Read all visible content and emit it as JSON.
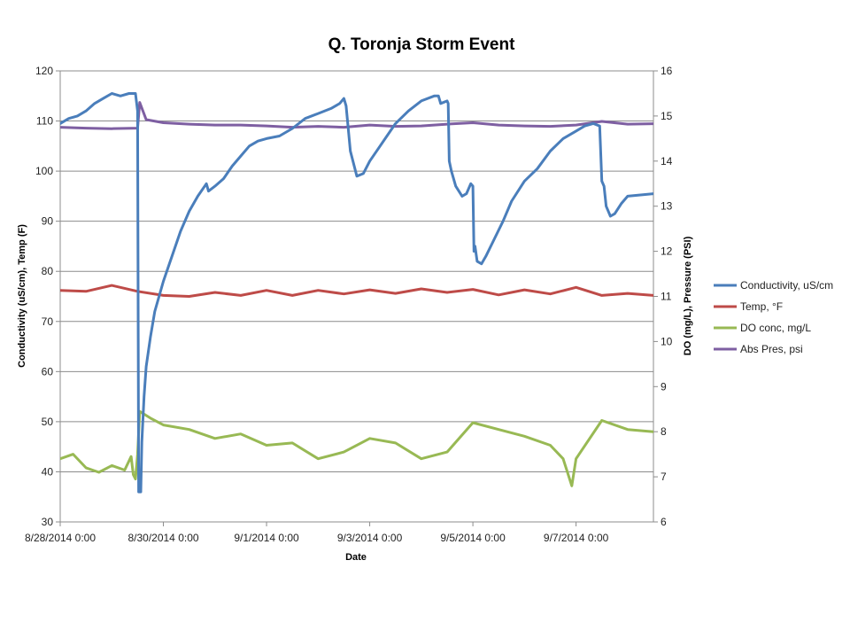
{
  "chart_data": {
    "type": "line",
    "title": "Q. Toronja Storm Event",
    "xlabel": "Date",
    "ylabel_left": "Conductivity  (uS/cm), Temp (F)",
    "ylabel_right": "DO (mg/L), Pressure (PSI)",
    "x_range": [
      "8/28/2014 0:00",
      "9/8/2014 12:00"
    ],
    "x_ticks": [
      "8/28/2014 0:00",
      "8/30/2014 0:00",
      "9/1/2014 0:00",
      "9/3/2014 0:00",
      "9/5/2014 0:00",
      "9/7/2014 0:00"
    ],
    "y_left_range": [
      30,
      120
    ],
    "y_left_ticks": [
      "30",
      "40",
      "50",
      "60",
      "70",
      "80",
      "90",
      "100",
      "110",
      "120"
    ],
    "y_right_range": [
      6,
      16
    ],
    "y_right_ticks": [
      "6",
      "7",
      "8",
      "9",
      "10",
      "11",
      "12",
      "13",
      "14",
      "15",
      "16"
    ],
    "grid": "horizontal",
    "legend_position": "right",
    "series": [
      {
        "name": "Conductivity, uS/cm",
        "axis": "left",
        "color": "#4a7ebb",
        "points": [
          [
            "8/28/2014 0:00",
            109.5
          ],
          [
            "8/28/2014 4:00",
            110.5
          ],
          [
            "8/28/2014 8:00",
            111
          ],
          [
            "8/28/2014 12:00",
            112
          ],
          [
            "8/28/2014 16:00",
            113.5
          ],
          [
            "8/28/2014 20:00",
            114.5
          ],
          [
            "8/29/2014 0:00",
            115.5
          ],
          [
            "8/29/2014 4:00",
            115
          ],
          [
            "8/29/2014 8:00",
            115.5
          ],
          [
            "8/29/2014 11:00",
            115.5
          ],
          [
            "8/29/2014 12:00",
            112
          ],
          [
            "8/29/2014 12:30",
            36
          ],
          [
            "8/29/2014 13:30",
            36
          ],
          [
            "8/29/2014 14:00",
            46
          ],
          [
            "8/29/2014 15:00",
            55
          ],
          [
            "8/29/2014 16:00",
            61
          ],
          [
            "8/29/2014 18:00",
            67
          ],
          [
            "8/29/2014 20:00",
            72
          ],
          [
            "8/30/2014 0:00",
            78
          ],
          [
            "8/30/2014 4:00",
            83
          ],
          [
            "8/30/2014 8:00",
            88
          ],
          [
            "8/30/2014 12:00",
            92
          ],
          [
            "8/30/2014 16:00",
            95
          ],
          [
            "8/30/2014 20:00",
            97.5
          ],
          [
            "8/30/2014 21:00",
            96
          ],
          [
            "8/31/2014 0:00",
            97
          ],
          [
            "8/31/2014 4:00",
            98.5
          ],
          [
            "8/31/2014 8:00",
            101
          ],
          [
            "8/31/2014 12:00",
            103
          ],
          [
            "8/31/2014 16:00",
            105
          ],
          [
            "8/31/2014 20:00",
            106
          ],
          [
            "9/1/2014 0:00",
            106.5
          ],
          [
            "9/1/2014 6:00",
            107
          ],
          [
            "9/1/2014 12:00",
            108.5
          ],
          [
            "9/1/2014 18:00",
            110.5
          ],
          [
            "9/2/2014 0:00",
            111.5
          ],
          [
            "9/2/2014 6:00",
            112.5
          ],
          [
            "9/2/2014 10:00",
            113.5
          ],
          [
            "9/2/2014 12:00",
            114.5
          ],
          [
            "9/2/2014 13:00",
            113
          ],
          [
            "9/2/2014 15:00",
            104
          ],
          [
            "9/2/2014 18:00",
            99
          ],
          [
            "9/2/2014 21:00",
            99.5
          ],
          [
            "9/3/2014 0:00",
            102
          ],
          [
            "9/3/2014 4:00",
            104.5
          ],
          [
            "9/3/2014 8:00",
            107
          ],
          [
            "9/3/2014 12:00",
            109.5
          ],
          [
            "9/3/2014 18:00",
            112
          ],
          [
            "9/4/2014 0:00",
            114
          ],
          [
            "9/4/2014 6:00",
            115
          ],
          [
            "9/4/2014 8:00",
            115
          ],
          [
            "9/4/2014 9:00",
            113.5
          ],
          [
            "9/4/2014 12:00",
            114
          ],
          [
            "9/4/2014 12:30",
            113.5
          ],
          [
            "9/4/2014 13:00",
            102
          ],
          [
            "9/4/2014 14:00",
            100
          ],
          [
            "9/4/2014 16:00",
            97
          ],
          [
            "9/4/2014 19:00",
            95
          ],
          [
            "9/4/2014 21:00",
            95.5
          ],
          [
            "9/4/2014 23:00",
            97.5
          ],
          [
            "9/5/2014 0:00",
            97
          ],
          [
            "9/5/2014 0:30",
            84
          ],
          [
            "9/5/2014 1:00",
            85
          ],
          [
            "9/5/2014 2:00",
            82
          ],
          [
            "9/5/2014 4:00",
            81.5
          ],
          [
            "9/5/2014 6:00",
            83
          ],
          [
            "9/5/2014 10:00",
            86.5
          ],
          [
            "9/5/2014 14:00",
            90
          ],
          [
            "9/5/2014 18:00",
            94
          ],
          [
            "9/6/2014 0:00",
            98
          ],
          [
            "9/6/2014 6:00",
            100.5
          ],
          [
            "9/6/2014 12:00",
            104
          ],
          [
            "9/6/2014 18:00",
            106.5
          ],
          [
            "9/7/2014 0:00",
            108
          ],
          [
            "9/7/2014 4:00",
            109
          ],
          [
            "9/7/2014 8:00",
            109.5
          ],
          [
            "9/7/2014 11:00",
            109
          ],
          [
            "9/7/2014 12:00",
            98
          ],
          [
            "9/7/2014 13:00",
            97
          ],
          [
            "9/7/2014 14:00",
            93
          ],
          [
            "9/7/2014 16:00",
            91
          ],
          [
            "9/7/2014 18:00",
            91.5
          ],
          [
            "9/7/2014 21:00",
            93.5
          ],
          [
            "9/8/2014 0:00",
            95
          ],
          [
            "9/8/2014 12:00",
            95.5
          ]
        ]
      },
      {
        "name": "Temp, °F",
        "axis": "left",
        "color": "#be4b48",
        "points": [
          [
            "8/28/2014 0:00",
            76.2
          ],
          [
            "8/28/2014 12:00",
            76
          ],
          [
            "8/29/2014 0:00",
            77.2
          ],
          [
            "8/29/2014 12:00",
            76
          ],
          [
            "8/30/2014 0:00",
            75.2
          ],
          [
            "8/30/2014 12:00",
            75
          ],
          [
            "8/31/2014 0:00",
            75.8
          ],
          [
            "8/31/2014 12:00",
            75.2
          ],
          [
            "9/1/2014 0:00",
            76.2
          ],
          [
            "9/1/2014 12:00",
            75.2
          ],
          [
            "9/2/2014 0:00",
            76.2
          ],
          [
            "9/2/2014 12:00",
            75.5
          ],
          [
            "9/3/2014 0:00",
            76.3
          ],
          [
            "9/3/2014 12:00",
            75.6
          ],
          [
            "9/4/2014 0:00",
            76.5
          ],
          [
            "9/4/2014 12:00",
            75.8
          ],
          [
            "9/5/2014 0:00",
            76.4
          ],
          [
            "9/5/2014 12:00",
            75.3
          ],
          [
            "9/6/2014 0:00",
            76.3
          ],
          [
            "9/6/2014 12:00",
            75.5
          ],
          [
            "9/7/2014 0:00",
            76.8
          ],
          [
            "9/7/2014 12:00",
            75.2
          ],
          [
            "9/8/2014 0:00",
            75.6
          ],
          [
            "9/8/2014 12:00",
            75.2
          ]
        ]
      },
      {
        "name": "DO conc, mg/L",
        "axis": "right",
        "color": "#98b954",
        "points": [
          [
            "8/28/2014 0:00",
            7.4
          ],
          [
            "8/28/2014 6:00",
            7.5
          ],
          [
            "8/28/2014 12:00",
            7.2
          ],
          [
            "8/28/2014 18:00",
            7.1
          ],
          [
            "8/29/2014 0:00",
            7.25
          ],
          [
            "8/29/2014 6:00",
            7.15
          ],
          [
            "8/29/2014 9:00",
            7.45
          ],
          [
            "8/29/2014 10:00",
            7.05
          ],
          [
            "8/29/2014 11:00",
            6.95
          ],
          [
            "8/29/2014 12:00",
            7.5
          ],
          [
            "8/29/2014 13:00",
            8.45
          ],
          [
            "8/29/2014 18:00",
            8.3
          ],
          [
            "8/30/2014 0:00",
            8.15
          ],
          [
            "8/30/2014 12:00",
            8.05
          ],
          [
            "8/31/2014 0:00",
            7.85
          ],
          [
            "8/31/2014 12:00",
            7.95
          ],
          [
            "9/1/2014 0:00",
            7.7
          ],
          [
            "9/1/2014 12:00",
            7.75
          ],
          [
            "9/2/2014 0:00",
            7.4
          ],
          [
            "9/2/2014 12:00",
            7.55
          ],
          [
            "9/3/2014 0:00",
            7.85
          ],
          [
            "9/3/2014 12:00",
            7.75
          ],
          [
            "9/4/2014 0:00",
            7.4
          ],
          [
            "9/4/2014 12:00",
            7.55
          ],
          [
            "9/5/2014 0:00",
            8.2
          ],
          [
            "9/5/2014 12:00",
            8.05
          ],
          [
            "9/6/2014 0:00",
            7.9
          ],
          [
            "9/6/2014 12:00",
            7.7
          ],
          [
            "9/6/2014 18:00",
            7.4
          ],
          [
            "9/6/2014 22:00",
            6.8
          ],
          [
            "9/7/2014 0:00",
            7.4
          ],
          [
            "9/7/2014 12:00",
            8.25
          ],
          [
            "9/8/2014 0:00",
            8.05
          ],
          [
            "9/8/2014 12:00",
            8.0
          ]
        ]
      },
      {
        "name": "Abs Pres, psi",
        "axis": "right",
        "color": "#7e5fa2",
        "points": [
          [
            "8/28/2014 0:00",
            14.75
          ],
          [
            "8/28/2014 12:00",
            14.73
          ],
          [
            "8/29/2014 0:00",
            14.72
          ],
          [
            "8/29/2014 12:00",
            14.73
          ],
          [
            "8/29/2014 13:00",
            15.3
          ],
          [
            "8/29/2014 16:00",
            14.92
          ],
          [
            "8/30/2014 0:00",
            14.85
          ],
          [
            "8/30/2014 12:00",
            14.82
          ],
          [
            "8/31/2014 0:00",
            14.8
          ],
          [
            "8/31/2014 12:00",
            14.8
          ],
          [
            "9/1/2014 0:00",
            14.78
          ],
          [
            "9/1/2014 12:00",
            14.75
          ],
          [
            "9/2/2014 0:00",
            14.77
          ],
          [
            "9/2/2014 12:00",
            14.75
          ],
          [
            "9/3/2014 0:00",
            14.8
          ],
          [
            "9/3/2014 12:00",
            14.77
          ],
          [
            "9/4/2014 0:00",
            14.78
          ],
          [
            "9/4/2014 12:00",
            14.82
          ],
          [
            "9/5/2014 0:00",
            14.85
          ],
          [
            "9/5/2014 12:00",
            14.8
          ],
          [
            "9/6/2014 0:00",
            14.78
          ],
          [
            "9/6/2014 12:00",
            14.77
          ],
          [
            "9/7/2014 0:00",
            14.8
          ],
          [
            "9/7/2014 12:00",
            14.88
          ],
          [
            "9/8/2014 0:00",
            14.82
          ],
          [
            "9/8/2014 12:00",
            14.83
          ]
        ]
      }
    ]
  }
}
